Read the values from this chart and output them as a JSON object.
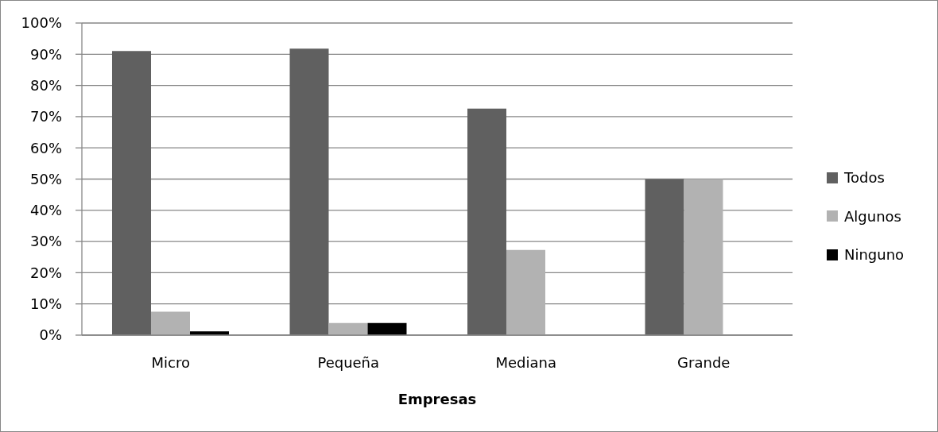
{
  "chart_data": {
    "type": "bar",
    "xlabel": "Empresas",
    "categories": [
      "Micro",
      "Pequeña",
      "Mediana",
      "Grande"
    ],
    "series": [
      {
        "name": "Todos",
        "color": "#606060",
        "values": [
          91,
          91.8,
          72.6,
          50
        ]
      },
      {
        "name": "Algunos",
        "color": "#b2b2b2",
        "values": [
          7.5,
          3.9,
          27.3,
          50
        ]
      },
      {
        "name": "Ninguno",
        "color": "#000000",
        "values": [
          1.2,
          3.9,
          0,
          0
        ]
      }
    ],
    "ylim": [
      0,
      100
    ],
    "yticks": [
      {
        "value": 0,
        "label": "0%"
      },
      {
        "value": 10,
        "label": "10%"
      },
      {
        "value": 20,
        "label": "20%"
      },
      {
        "value": 30,
        "label": "30%"
      },
      {
        "value": 40,
        "label": "40%"
      },
      {
        "value": 50,
        "label": "50%"
      },
      {
        "value": 60,
        "label": "60%"
      },
      {
        "value": 70,
        "label": "70%"
      },
      {
        "value": 80,
        "label": "80%"
      },
      {
        "value": 90,
        "label": "90%"
      },
      {
        "value": 100,
        "label": "100%"
      }
    ],
    "grid": "y",
    "legend": "right"
  }
}
